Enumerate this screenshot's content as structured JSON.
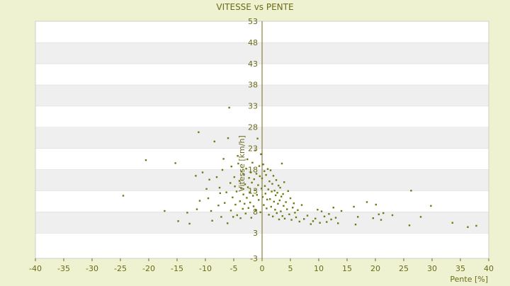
{
  "chart_data": {
    "type": "scatter",
    "title": "VITESSE vs PENTE",
    "xlabel": "Pente [%]",
    "ylabel": "Vitesse [km/h]",
    "xlim": [
      -40,
      40
    ],
    "ylim": [
      -3,
      53
    ],
    "x_ticks": [
      -40,
      -35,
      -30,
      -25,
      -20,
      -15,
      -10,
      -5,
      0,
      5,
      10,
      15,
      20,
      25,
      30,
      35,
      40
    ],
    "y_ticks": [
      -3,
      3,
      8,
      13,
      18,
      23,
      28,
      33,
      38,
      43,
      48,
      53
    ],
    "y_tick_labels": [
      "-3",
      "3",
      "8",
      "13",
      "18",
      "23",
      "28",
      "33",
      "38",
      "43",
      "48",
      "53"
    ],
    "grid": true,
    "legend": "none",
    "colors": {
      "background": "#eef2d0",
      "band_light": "#ffffff",
      "band_dark": "#efefef",
      "point": "#6e7a10",
      "axis": "#6b6a1a"
    },
    "points": [
      [
        -24.5,
        11.8
      ],
      [
        -20.5,
        20.2
      ],
      [
        -17.2,
        8.2
      ],
      [
        -15.3,
        19.5
      ],
      [
        -14.8,
        5.8
      ],
      [
        -13.2,
        7.8
      ],
      [
        -12.8,
        5.2
      ],
      [
        -11.7,
        16.5
      ],
      [
        -11.5,
        8.6
      ],
      [
        -11.2,
        26.8
      ],
      [
        -11.0,
        10.6
      ],
      [
        -10.5,
        17.3
      ],
      [
        -9.8,
        13.4
      ],
      [
        -9.5,
        11.2
      ],
      [
        -9.3,
        15.6
      ],
      [
        -9.0,
        8.2
      ],
      [
        -8.8,
        5.9
      ],
      [
        -8.4,
        24.6
      ],
      [
        -8.0,
        16.2
      ],
      [
        -7.7,
        9.5
      ],
      [
        -7.5,
        13.7
      ],
      [
        -7.4,
        12.4
      ],
      [
        -7.2,
        6.8
      ],
      [
        -7.0,
        17.9
      ],
      [
        -6.8,
        20.5
      ],
      [
        -6.6,
        10.1
      ],
      [
        -6.3,
        12.6
      ],
      [
        -6.1,
        5.3
      ],
      [
        -6.0,
        25.4
      ],
      [
        -5.8,
        32.6
      ],
      [
        -5.6,
        14.8
      ],
      [
        -5.5,
        8.3
      ],
      [
        -5.4,
        18.7
      ],
      [
        -5.2,
        11.4
      ],
      [
        -5.1,
        6.8
      ],
      [
        -4.9,
        16.2
      ],
      [
        -4.8,
        14.0
      ],
      [
        -4.7,
        9.7
      ],
      [
        -4.5,
        12.8
      ],
      [
        -4.4,
        7.2
      ],
      [
        -4.3,
        21.2
      ],
      [
        -4.2,
        19.4
      ],
      [
        -4.0,
        15.3
      ],
      [
        -3.9,
        10.5
      ],
      [
        -3.8,
        6.5
      ],
      [
        -3.7,
        13.6
      ],
      [
        -3.6,
        17.5
      ],
      [
        -3.4,
        8.7
      ],
      [
        -3.3,
        12.1
      ],
      [
        -3.2,
        16.8
      ],
      [
        -3.1,
        9.9
      ],
      [
        -3.0,
        14.5
      ],
      [
        -2.9,
        7.6
      ],
      [
        -2.8,
        18.2
      ],
      [
        -2.7,
        11.3
      ],
      [
        -2.6,
        20.4
      ],
      [
        -2.5,
        13.8
      ],
      [
        -2.4,
        8.9
      ],
      [
        -2.3,
        16.0
      ],
      [
        -2.2,
        12.6
      ],
      [
        -2.1,
        10.2
      ],
      [
        -2.0,
        17.3
      ],
      [
        -1.9,
        6.6
      ],
      [
        -1.8,
        14.9
      ],
      [
        -1.7,
        19.6
      ],
      [
        -1.6,
        11.8
      ],
      [
        -1.5,
        9.3
      ],
      [
        -1.4,
        15.7
      ],
      [
        -1.3,
        13.1
      ],
      [
        -1.2,
        22.5
      ],
      [
        -1.1,
        8.4
      ],
      [
        -1.0,
        17.0
      ],
      [
        -0.9,
        12.0
      ],
      [
        -0.8,
        25.3
      ],
      [
        -0.7,
        14.3
      ],
      [
        -0.6,
        10.8
      ],
      [
        -0.5,
        18.8
      ],
      [
        -0.4,
        16.4
      ],
      [
        -0.3,
        7.9
      ],
      [
        -0.2,
        21.6
      ],
      [
        -0.1,
        13.5
      ],
      [
        0.0,
        15.9
      ],
      [
        0.1,
        11.5
      ],
      [
        0.2,
        19.2
      ],
      [
        0.3,
        9.6
      ],
      [
        0.4,
        17.6
      ],
      [
        0.5,
        14.1
      ],
      [
        0.6,
        12.3
      ],
      [
        0.7,
        16.7
      ],
      [
        0.8,
        8.8
      ],
      [
        0.9,
        10.9
      ],
      [
        1.0,
        18.1
      ],
      [
        1.1,
        13.3
      ],
      [
        1.2,
        7.3
      ],
      [
        1.3,
        15.2
      ],
      [
        1.4,
        11.0
      ],
      [
        1.5,
        17.8
      ],
      [
        1.6,
        9.2
      ],
      [
        1.7,
        12.8
      ],
      [
        1.8,
        14.6
      ],
      [
        1.9,
        6.9
      ],
      [
        2.0,
        16.5
      ],
      [
        2.1,
        10.4
      ],
      [
        2.2,
        13.0
      ],
      [
        2.3,
        8.5
      ],
      [
        2.4,
        11.9
      ],
      [
        2.5,
        15.5
      ],
      [
        2.6,
        7.7
      ],
      [
        2.7,
        12.5
      ],
      [
        2.8,
        9.9
      ],
      [
        2.9,
        14.2
      ],
      [
        3.0,
        6.2
      ],
      [
        3.1,
        10.7
      ],
      [
        3.2,
        13.7
      ],
      [
        3.3,
        8.1
      ],
      [
        3.4,
        11.6
      ],
      [
        3.5,
        19.4
      ],
      [
        3.6,
        7.0
      ],
      [
        3.7,
        12.2
      ],
      [
        3.8,
        9.4
      ],
      [
        3.9,
        15.0
      ],
      [
        4.0,
        6.4
      ],
      [
        4.2,
        10.3
      ],
      [
        4.4,
        8.6
      ],
      [
        4.6,
        12.9
      ],
      [
        4.8,
        7.4
      ],
      [
        5.0,
        11.2
      ],
      [
        5.2,
        6.1
      ],
      [
        5.4,
        9.0
      ],
      [
        5.6,
        10.0
      ],
      [
        5.8,
        7.8
      ],
      [
        6.0,
        6.7
      ],
      [
        6.3,
        8.4
      ],
      [
        6.6,
        5.7
      ],
      [
        7.0,
        9.6
      ],
      [
        7.4,
        6.3
      ],
      [
        8.0,
        7.1
      ],
      [
        8.6,
        5.1
      ],
      [
        9.0,
        5.8
      ],
      [
        9.4,
        6.4
      ],
      [
        9.8,
        8.5
      ],
      [
        10.2,
        5.4
      ],
      [
        10.5,
        8.1
      ],
      [
        11.0,
        6.9
      ],
      [
        11.4,
        5.6
      ],
      [
        11.8,
        7.5
      ],
      [
        12.2,
        6.2
      ],
      [
        12.6,
        9.0
      ],
      [
        13.0,
        6.6
      ],
      [
        13.4,
        5.3
      ],
      [
        14.0,
        8.2
      ],
      [
        16.2,
        9.2
      ],
      [
        16.5,
        5.0
      ],
      [
        16.9,
        6.8
      ],
      [
        18.5,
        10.3
      ],
      [
        19.6,
        6.5
      ],
      [
        20.1,
        9.7
      ],
      [
        20.6,
        7.4
      ],
      [
        21.0,
        6.1
      ],
      [
        21.4,
        7.7
      ],
      [
        23.0,
        7.2
      ],
      [
        26.0,
        4.8
      ],
      [
        26.3,
        13.0
      ],
      [
        28.0,
        6.8
      ],
      [
        29.8,
        9.4
      ],
      [
        33.6,
        5.4
      ],
      [
        36.3,
        4.4
      ],
      [
        37.8,
        4.7
      ]
    ]
  }
}
